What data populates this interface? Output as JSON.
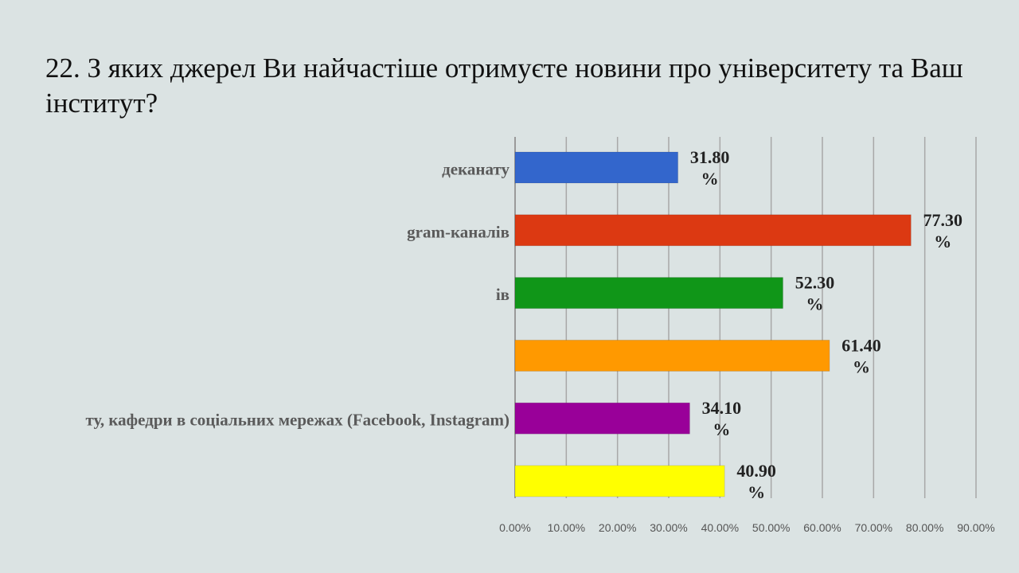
{
  "slide": {
    "title": "22.  З яких джерел Ви найчастіше отримуєте новини про університету та Ваш інститут?"
  },
  "chart_data": {
    "type": "bar",
    "orientation": "horizontal",
    "title": "",
    "xlabel": "",
    "ylabel": "",
    "xlim": [
      0,
      90
    ],
    "xticks": [
      "0.00%",
      "10.00%",
      "20.00%",
      "30.00%",
      "40.00%",
      "50.00%",
      "60.00%",
      "70.00%",
      "80.00%",
      "90.00%"
    ],
    "grid": "vertical",
    "legend": "none",
    "categories": [
      "деканату",
      "gram-каналів",
      "ів",
      "",
      "ту, кафедри в соціальних мережах (Facebook, Instagram)",
      ""
    ],
    "values": [
      31.8,
      77.3,
      52.3,
      61.4,
      34.1,
      40.9
    ],
    "value_labels": [
      [
        "31.80",
        "%"
      ],
      [
        "77.30",
        "%"
      ],
      [
        "52.30",
        "%"
      ],
      [
        "61.40",
        "%"
      ],
      [
        "34.10",
        "%"
      ],
      [
        "40.90",
        "%"
      ]
    ],
    "colors": [
      "#3366cc",
      "#dc3912",
      "#109618",
      "#ff9900",
      "#990099",
      "#ffff00"
    ]
  }
}
